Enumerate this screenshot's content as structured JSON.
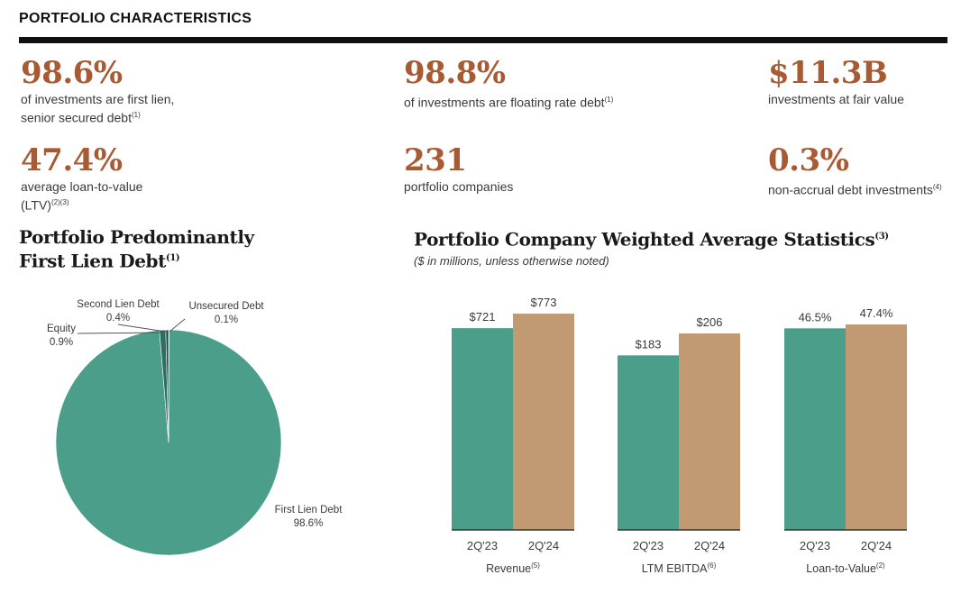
{
  "header": {
    "title": "PORTFOLIO CHARACTERISTICS"
  },
  "kpis": [
    {
      "value": "98.6%",
      "line1": "of investments are first lien,",
      "line2": "senior secured debt",
      "note": "(1)"
    },
    {
      "value": "98.8%",
      "line1": "of investments are floating rate debt",
      "line2": "",
      "note": "(1)"
    },
    {
      "value": "$11.3B",
      "line1": "investments at fair value",
      "line2": "",
      "note": ""
    },
    {
      "value": "47.4%",
      "line1": "average loan-to-value",
      "line2": "(LTV)",
      "note": "(2)(3)"
    },
    {
      "value": "231",
      "line1": "portfolio companies",
      "line2": "",
      "note": ""
    },
    {
      "value": "0.3%",
      "line1": "non-accrual debt investments",
      "line2": "",
      "note": "(4)"
    }
  ],
  "pie_section": {
    "title_line1": "Portfolio Predominantly",
    "title_line2": "First Lien Debt",
    "title_note": "(1)"
  },
  "bar_section": {
    "title": "Portfolio Company Weighted Average Statistics",
    "title_note": "(3)",
    "subtitle": "($ in millions, unless otherwise noted)"
  },
  "colors": {
    "accent": "#a85a33",
    "teal": "#4a9e8a",
    "tan": "#c19a74",
    "dark_teal": "#1f4d46",
    "rule": "#111111"
  },
  "chart_data": [
    {
      "type": "pie",
      "slices": [
        {
          "label": "First Lien Debt",
          "value": 98.6,
          "display": "98.6%",
          "color": "#4a9e8a"
        },
        {
          "label": "Equity",
          "value": 0.9,
          "display": "0.9%",
          "color": "#2e6e62"
        },
        {
          "label": "Second Lien Debt",
          "value": 0.4,
          "display": "0.4%",
          "color": "#1f4d46"
        },
        {
          "label": "Unsecured Debt",
          "value": 0.1,
          "display": "0.1%",
          "color": "#c19a74"
        }
      ]
    },
    {
      "type": "bar",
      "groups": [
        {
          "label": "Revenue",
          "note": "(5)",
          "categories": [
            "2Q'23",
            "2Q'24"
          ],
          "values": [
            721,
            773
          ],
          "labels": [
            "$721",
            "$773"
          ]
        },
        {
          "label": "LTM EBITDA",
          "note": "(6)",
          "categories": [
            "2Q'23",
            "2Q'24"
          ],
          "values": [
            183,
            206
          ],
          "labels": [
            "$183",
            "$206"
          ]
        },
        {
          "label": "Loan-to-Value",
          "note": "(2)",
          "categories": [
            "2Q'23",
            "2Q'24"
          ],
          "values": [
            46.5,
            47.4
          ],
          "labels": [
            "46.5%",
            "47.4%"
          ]
        }
      ],
      "series_colors": [
        "#4a9e8a",
        "#c19a74"
      ]
    }
  ]
}
